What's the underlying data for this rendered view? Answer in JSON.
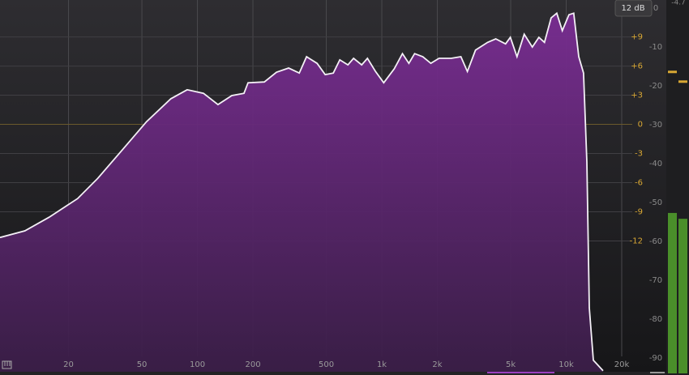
{
  "range_button": "12 dB",
  "meter_peak_label": "-4.7",
  "freq_axis": {
    "scale": "log",
    "xlim": [
      8.5,
      34900
    ],
    "ticks": [
      20,
      50,
      100,
      200,
      500,
      {
        "value": 1000,
        "label": "1k"
      },
      {
        "value": 2000,
        "label": "2k"
      },
      {
        "value": 5000,
        "label": "5k"
      },
      {
        "value": 10000,
        "label": "10k"
      },
      {
        "value": 20000,
        "label": "20k"
      }
    ]
  },
  "gain_axis": {
    "ylim": [
      12.8,
      -25.8
    ],
    "ticks": [
      {
        "value": 9,
        "label": "+9"
      },
      {
        "value": 6,
        "label": "+6"
      },
      {
        "value": 3,
        "label": "+3"
      },
      0,
      -3,
      -6,
      -9,
      -12
    ]
  },
  "db_axis": {
    "ylim": [
      2.1,
      -94.4
    ],
    "ticks": [
      0,
      -10,
      -20,
      -30,
      -40,
      -50,
      -60,
      -70,
      -80,
      -90
    ]
  },
  "spectrum": {
    "x": [
      8.5,
      11.6,
      15.7,
      22.4,
      28.8,
      39.1,
      53,
      71.8,
      88,
      107.8,
      129.3,
      153.7,
      178.9,
      188.2,
      230.6,
      268.5,
      312.5,
      356.7,
      390.6,
      445.8,
      493,
      546,
      592,
      655,
      703,
      778,
      836,
      925,
      1024,
      1168,
      1294,
      1402,
      1507,
      1668,
      1845,
      2042,
      2378,
      2685,
      2911,
      3221,
      3750,
      4150,
      4688,
      4980,
      5408,
      5920,
      6550,
      7112,
      7620,
      8280,
      8892,
      9528,
      10352,
      10990,
      11696,
      12420,
      12940,
      13340,
      14030,
      15840
    ],
    "values": [
      -59,
      -57.3,
      -53.8,
      -49,
      -43.8,
      -36.5,
      -29.2,
      -23.3,
      -21,
      -21.9,
      -24.8,
      -22.5,
      -21.9,
      -19.2,
      -19,
      -16.5,
      -15.4,
      -16.7,
      -12.5,
      -14.2,
      -17.1,
      -16.7,
      -13.3,
      -14.6,
      -12.9,
      -14.6,
      -12.9,
      -16.3,
      -19.2,
      -15.6,
      -11.7,
      -14.2,
      -11.7,
      -12.5,
      -14.2,
      -12.9,
      -12.9,
      -12.5,
      -16.3,
      -10.8,
      -8.8,
      -7.9,
      -9.2,
      -7.5,
      -12.5,
      -6.7,
      -10,
      -7.5,
      -8.8,
      -2.5,
      -1.3,
      -5.8,
      -1.7,
      -1.3,
      -12.5,
      -16.7,
      -39.6,
      -77.1,
      -90.6,
      -93.3
    ]
  },
  "meter": {
    "levels": [
      -52.7,
      -54.2
    ],
    "peaks": [
      -16.3,
      -18.8
    ]
  }
}
